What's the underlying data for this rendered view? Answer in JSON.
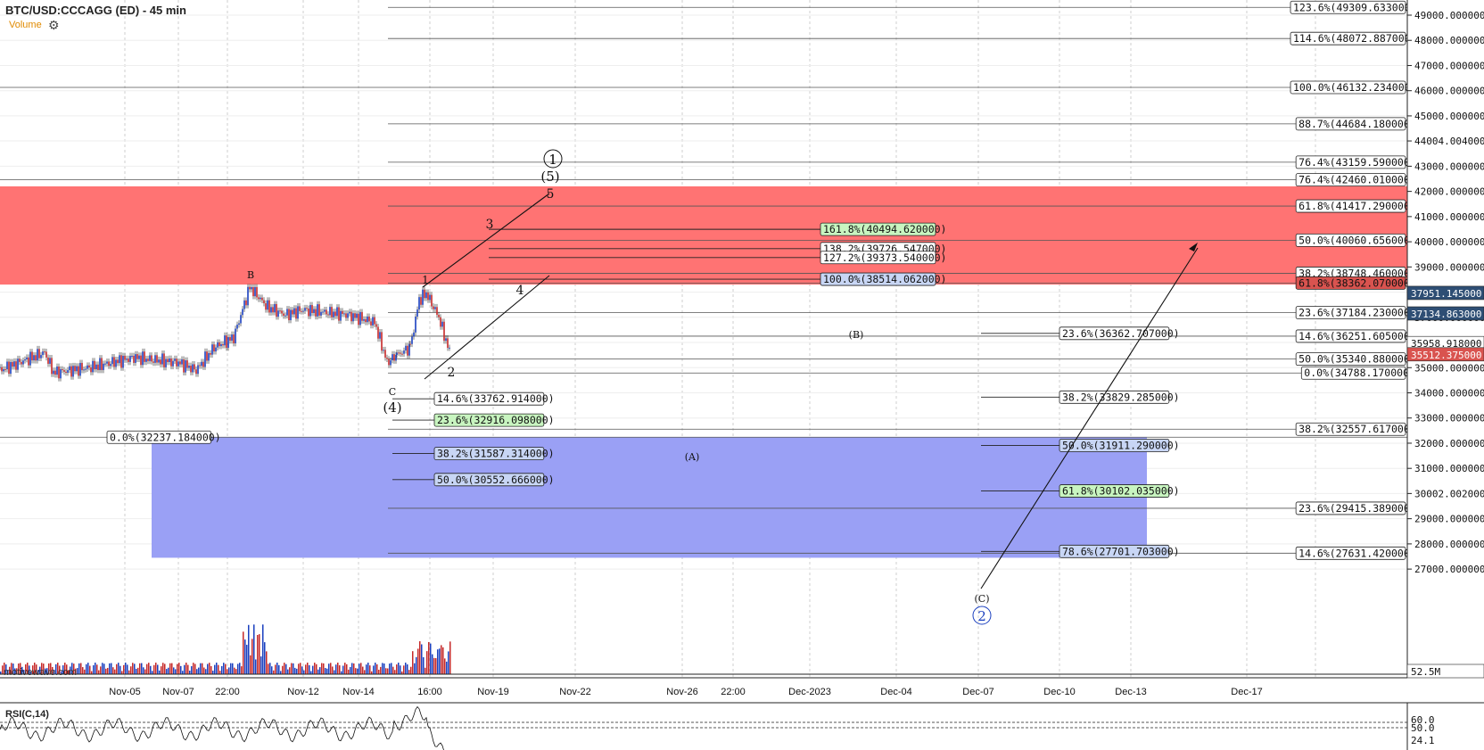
{
  "header": {
    "title": "BTC/USD:CCCAGG (ED) - 45 min",
    "volume_label": "Volume",
    "settings_icon": "gear-icon"
  },
  "watermark": "motivewave.com",
  "rsi": {
    "label": "RSI(C,14)",
    "levels": [
      "60.0",
      "50.0",
      "24.1"
    ]
  },
  "colors": {
    "resistance_zone": "#ff7373",
    "support_zone": "#9aa0f5",
    "price_tag": "#d9534f",
    "blue_tag": "#2e4e74"
  },
  "chart_data": {
    "type": "candlestick",
    "symbol": "BTC/USD:CCCAGG (ED)",
    "interval": "45 min",
    "ylim": [
      26300,
      49400
    ],
    "y_ticks": [
      27000,
      28000,
      29000,
      30002.002,
      31000,
      32000,
      33000,
      34000,
      35000,
      36000,
      37000,
      38000,
      39000,
      40000,
      41000,
      42000,
      43000,
      44004.004,
      45000,
      46000,
      47000,
      48000,
      49000
    ],
    "y_tick_labels": [
      "27000.000000",
      "28000.000000",
      "29000.000000",
      "30002.002000",
      "31000.000000",
      "32000.000000",
      "33000.000000",
      "34000.000000",
      "35000.000000",
      "36000.000000",
      "37000.000000",
      "38000.000000",
      "39000.000000",
      "40000.000000",
      "41000.000000",
      "42000.000000",
      "43000.000000",
      "44004.004000",
      "45000.000000",
      "46000.000000",
      "47000.000000",
      "48000.000000",
      "49000.000000"
    ],
    "x_ticks": [
      "Nov-05",
      "Nov-07",
      "22:00",
      "Nov-12",
      "Nov-14",
      "16:00",
      "Nov-19",
      "Nov-22",
      "Nov-26",
      "22:00",
      "Dec-2023",
      "Dec-04",
      "Dec-07",
      "Dec-10",
      "Dec-13",
      "Dec-17"
    ],
    "price_tags": [
      {
        "label": "37951.145000",
        "value": 37951.145,
        "style": "blue"
      },
      {
        "label": "37134.863000",
        "value": 37134.863,
        "style": "blue"
      },
      {
        "label": "35958.918000",
        "value": 35958.918,
        "style": "plain"
      },
      {
        "label": "35512.375000",
        "value": 35512.375,
        "style": "red"
      },
      {
        "label": "52.5M",
        "value": null,
        "style": "volume"
      }
    ],
    "zones": [
      {
        "name": "resistance",
        "from": 38300,
        "to": 42200
      },
      {
        "name": "support",
        "from": 27450,
        "to": 32237.184
      }
    ],
    "fib_right": [
      {
        "label": "123.6%(49309.633000)",
        "value": 49309.633
      },
      {
        "label": "114.6%(48072.887000)",
        "value": 48072.887
      },
      {
        "label": "100.0%(46132.234000)",
        "value": 46132.234
      },
      {
        "label": "88.7%(44684.180000)",
        "value": 44684.18
      },
      {
        "label": "76.4%(43159.590000)",
        "value": 43159.59
      },
      {
        "label": "76.4%(42460.010000)",
        "value": 42460.01
      },
      {
        "label": "61.8%(41417.290000)",
        "value": 41417.29
      },
      {
        "label": "50.0%(40060.656000)",
        "value": 40060.656
      },
      {
        "label": "38.2%(38748.460000)",
        "value": 38748.46
      },
      {
        "label": "61.8%(38362.070000)",
        "value": 38362.07
      },
      {
        "label": "23.6%(37184.230000)",
        "value": 37184.23
      },
      {
        "label": "14.6%(36251.605000)",
        "value": 36251.605
      },
      {
        "label": "50.0%(35340.880000)",
        "value": 35340.88
      },
      {
        "label": "0.0%(34788.170000)",
        "value": 34788.17
      },
      {
        "label": "38.2%(32557.617000)",
        "value": 32557.617
      },
      {
        "label": "23.6%(29415.389000)",
        "value": 29415.389
      },
      {
        "label": "14.6%(27631.420000)",
        "value": 27631.42
      }
    ],
    "fib_extension": [
      {
        "label": "161.8%(40494.620000)",
        "value": 40494.62,
        "style": "green"
      },
      {
        "label": "138.2%(39726.547000)",
        "value": 39726.547,
        "style": "plain"
      },
      {
        "label": "127.2%(39373.540000)",
        "value": 39373.54,
        "style": "plain"
      },
      {
        "label": "100.0%(38514.062000)",
        "value": 38514.062,
        "style": "blue"
      }
    ],
    "fib_retrace_left": [
      {
        "label": "14.6%(33762.914000)",
        "value": 33762.914,
        "style": "plain"
      },
      {
        "label": "23.6%(32916.098000)",
        "value": 32916.098,
        "style": "green"
      },
      {
        "label": "38.2%(31587.314000)",
        "value": 31587.314,
        "style": "blue"
      },
      {
        "label": "50.0%(30552.666000)",
        "value": 30552.666,
        "style": "blue"
      }
    ],
    "fib_retrace_mid": [
      {
        "label": "23.6%(36362.707000)",
        "value": 36362.707,
        "style": "plain"
      },
      {
        "label": "38.2%(33829.285000)",
        "value": 33829.285,
        "style": "plain"
      },
      {
        "label": "50.0%(31911.290000)",
        "value": 31911.29,
        "style": "blue"
      },
      {
        "label": "61.8%(30102.035000)",
        "value": 30102.035,
        "style": "green"
      },
      {
        "label": "78.6%(27701.703000)",
        "value": 27701.703,
        "style": "blue"
      }
    ],
    "fib_left_anchor": {
      "label": "0.0%(32237.184000)",
      "value": 32237.184
    },
    "wave_labels": [
      "B",
      "C",
      "(4)",
      "1",
      "2",
      "3",
      "4",
      "5",
      "(5)",
      "1",
      "(A)",
      "(B)",
      "(C)",
      "2"
    ]
  }
}
